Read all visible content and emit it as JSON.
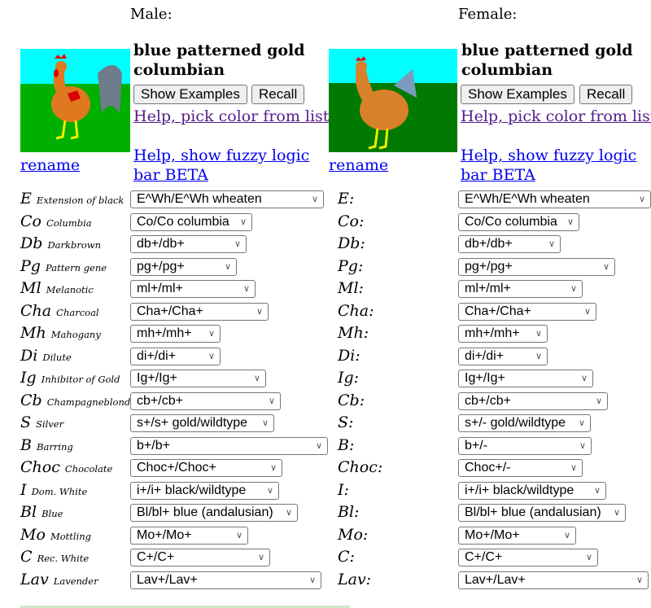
{
  "male": {
    "heading": "Male:",
    "color_name": "blue patterned gold columbian",
    "show_examples": "Show Examples",
    "recall": "Recall",
    "help_pick": "Help, pick color from list",
    "help_fuzzy": "Help, show fuzzy logic bar BETA",
    "rename": "rename",
    "genes": [
      {
        "sym": "E",
        "name": "Extension of black",
        "value": "E^Wh/E^Wh wheaten"
      },
      {
        "sym": "Co",
        "name": "Columbia",
        "value": "Co/Co columbia"
      },
      {
        "sym": "Db",
        "name": "Darkbrown",
        "value": "db+/db+"
      },
      {
        "sym": "Pg",
        "name": "Pattern gene",
        "value": "pg+/pg+"
      },
      {
        "sym": "Ml",
        "name": "Melanotic",
        "value": "ml+/ml+"
      },
      {
        "sym": "Cha",
        "name": "Charcoal",
        "value": "Cha+/Cha+"
      },
      {
        "sym": "Mh",
        "name": "Mahogany",
        "value": "mh+/mh+"
      },
      {
        "sym": "Di",
        "name": "Dilute",
        "value": "di+/di+"
      },
      {
        "sym": "Ig",
        "name": "Inhibitor of Gold",
        "value": "Ig+/Ig+"
      },
      {
        "sym": "Cb",
        "name": "Champagneblond",
        "value": "cb+/cb+"
      },
      {
        "sym": "S",
        "name": "Silver",
        "value": "s+/s+ gold/wildtype"
      },
      {
        "sym": "B",
        "name": "Barring",
        "value": "b+/b+"
      },
      {
        "sym": "Choc",
        "name": "Chocolate",
        "value": "Choc+/Choc+"
      },
      {
        "sym": "I",
        "name": "Dom. White",
        "value": "i+/i+ black/wildtype"
      },
      {
        "sym": "Bl",
        "name": "Blue",
        "value": "Bl/bl+ blue (andalusian)"
      },
      {
        "sym": "Mo",
        "name": "Mottling",
        "value": "Mo+/Mo+"
      },
      {
        "sym": "C",
        "name": "Rec. White",
        "value": "C+/C+"
      },
      {
        "sym": "Lav",
        "name": "Lavender",
        "value": "Lav+/Lav+"
      }
    ]
  },
  "female": {
    "heading": "Female:",
    "color_name": "blue patterned gold columbian",
    "show_examples": "Show Examples",
    "recall": "Recall",
    "help_pick": "Help, pick color from list",
    "help_fuzzy": "Help, show fuzzy logic bar BETA",
    "rename": "rename",
    "genes": [
      {
        "sym": "E:",
        "value": "E^Wh/E^Wh wheaten"
      },
      {
        "sym": "Co:",
        "value": "Co/Co columbia"
      },
      {
        "sym": "Db:",
        "value": "db+/db+"
      },
      {
        "sym": "Pg:",
        "value": "pg+/pg+"
      },
      {
        "sym": "Ml:",
        "value": "ml+/ml+"
      },
      {
        "sym": "Cha:",
        "value": "Cha+/Cha+"
      },
      {
        "sym": "Mh:",
        "value": "mh+/mh+"
      },
      {
        "sym": "Di:",
        "value": "di+/di+"
      },
      {
        "sym": "Ig:",
        "value": "Ig+/Ig+"
      },
      {
        "sym": "Cb:",
        "value": "cb+/cb+"
      },
      {
        "sym": "S:",
        "value": "s+/- gold/wildtype"
      },
      {
        "sym": "B:",
        "value": "b+/-"
      },
      {
        "sym": "Choc:",
        "value": "Choc+/-"
      },
      {
        "sym": "I:",
        "value": "i+/i+ black/wildtype"
      },
      {
        "sym": "Bl:",
        "value": "Bl/bl+ blue (andalusian)"
      },
      {
        "sym": "Mo:",
        "value": "Mo+/Mo+"
      },
      {
        "sym": "C:",
        "value": "C+/C+"
      },
      {
        "sym": "Lav:",
        "value": "Lav+/Lav+"
      }
    ]
  },
  "colors": {
    "sky": "#00ffff",
    "grass_male": "#00b000",
    "grass_female": "#007a00",
    "link": "#0000ee",
    "visited": "#551a8b"
  }
}
